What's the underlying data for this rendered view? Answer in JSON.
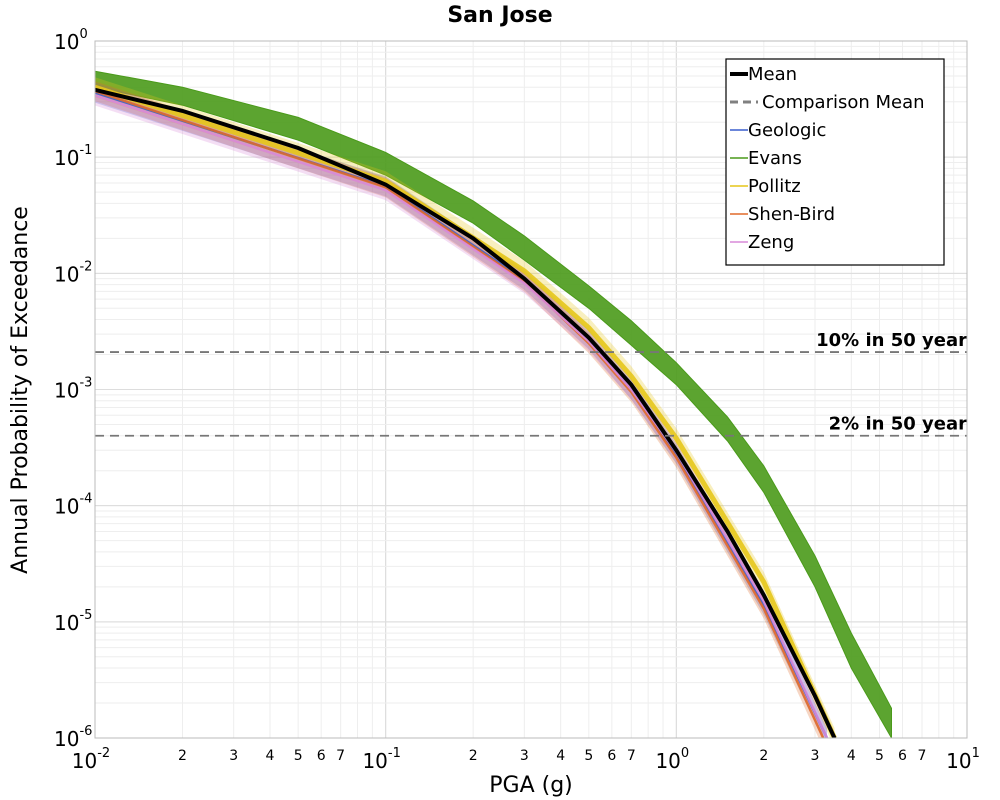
{
  "chart_data": {
    "type": "line",
    "title": "San Jose",
    "xlabel": "PGA (g)",
    "ylabel": "Annual Probability of Exceedance",
    "xscale": "log",
    "yscale": "log",
    "xlim": [
      0.01,
      10
    ],
    "ylim": [
      1e-06,
      1
    ],
    "grid": true,
    "legend_position": "top-right",
    "x_major_ticks": [
      {
        "value": 0.01,
        "base": "10",
        "exp": "-2"
      },
      {
        "value": 0.1,
        "base": "10",
        "exp": "-1"
      },
      {
        "value": 1,
        "base": "10",
        "exp": "0"
      },
      {
        "value": 10,
        "base": "10",
        "exp": "1"
      }
    ],
    "x_minor_tick_labels": [
      "2",
      "3",
      "4",
      "5",
      "6",
      "7"
    ],
    "y_major_ticks": [
      {
        "value": 1,
        "base": "10",
        "exp": "0"
      },
      {
        "value": 0.1,
        "base": "10",
        "exp": "-1"
      },
      {
        "value": 0.01,
        "base": "10",
        "exp": "-2"
      },
      {
        "value": 0.001,
        "base": "10",
        "exp": "-3"
      },
      {
        "value": 0.0001,
        "base": "10",
        "exp": "-4"
      },
      {
        "value": 1e-05,
        "base": "10",
        "exp": "-5"
      },
      {
        "value": 1e-06,
        "base": "10",
        "exp": "-6"
      }
    ],
    "series": [
      {
        "name": "Mean",
        "color": "#000000",
        "style": "solid-thick",
        "x": [
          0.01,
          0.02,
          0.05,
          0.1,
          0.2,
          0.3,
          0.5,
          0.7,
          1.0,
          1.5,
          2.0,
          3.0,
          3.5
        ],
        "y": [
          0.38,
          0.25,
          0.12,
          0.058,
          0.02,
          0.009,
          0.0028,
          0.0011,
          0.0003,
          6e-05,
          1.7e-05,
          2.3e-06,
          1e-06
        ]
      },
      {
        "name": "Comparison Mean",
        "color": "#808080",
        "style": "dashed",
        "x": [],
        "y": []
      },
      {
        "name": "Geologic",
        "color": "#3a5fcd",
        "style": "solid",
        "x": [
          0.01,
          0.1,
          0.3,
          0.5,
          0.7,
          1.0,
          2.0,
          3.3
        ],
        "y": [
          0.36,
          0.056,
          0.0088,
          0.0027,
          0.001,
          0.00028,
          1.4e-05,
          1e-06
        ]
      },
      {
        "name": "Evans",
        "color": "#4a9a1a",
        "style": "band",
        "x": [
          0.01,
          0.02,
          0.05,
          0.1,
          0.2,
          0.3,
          0.5,
          0.7,
          1.0,
          1.5,
          2.0,
          3.0,
          4.0,
          5.5
        ],
        "y_low": [
          0.4,
          0.28,
          0.14,
          0.07,
          0.027,
          0.013,
          0.005,
          0.0024,
          0.0011,
          0.00036,
          0.00013,
          2e-05,
          4e-06,
          1e-06
        ],
        "y_high": [
          0.55,
          0.4,
          0.22,
          0.11,
          0.042,
          0.021,
          0.0078,
          0.0039,
          0.0017,
          0.00058,
          0.00022,
          3.7e-05,
          8e-06,
          1.8e-06
        ]
      },
      {
        "name": "Pollitz",
        "color": "#e6c619",
        "style": "solid",
        "x": [
          0.01,
          0.1,
          0.3,
          0.5,
          0.7,
          1.0,
          2.0,
          3.5
        ],
        "y": [
          0.4,
          0.062,
          0.0105,
          0.0034,
          0.0013,
          0.00038,
          2.2e-05,
          1e-06
        ]
      },
      {
        "name": "Shen-Bird",
        "color": "#e06a2a",
        "style": "solid",
        "x": [
          0.01,
          0.1,
          0.3,
          0.5,
          0.7,
          1.0,
          2.0,
          3.2
        ],
        "y": [
          0.37,
          0.055,
          0.0085,
          0.0025,
          0.00095,
          0.00026,
          1.3e-05,
          1e-06
        ]
      },
      {
        "name": "Zeng",
        "color": "#d88ad8",
        "style": "solid",
        "x": [
          0.01,
          0.1,
          0.3,
          0.5,
          0.7,
          1.0,
          2.0,
          3.3
        ],
        "y": [
          0.34,
          0.052,
          0.0082,
          0.0026,
          0.001,
          0.00029,
          1.5e-05,
          1e-06
        ]
      }
    ],
    "reference_lines": [
      {
        "label": "10% in 50 year",
        "y": 0.0021
      },
      {
        "label": "2% in 50 year",
        "y": 0.0004
      }
    ]
  }
}
